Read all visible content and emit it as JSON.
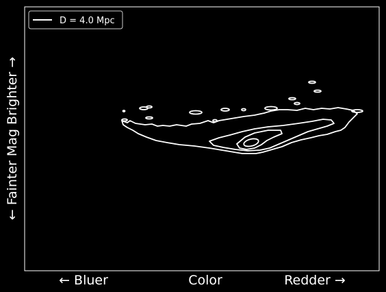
{
  "chart_data": {
    "type": "contour",
    "title": "",
    "xlabel": {
      "left": "← Bluer",
      "center": "Color",
      "right": "Redder →"
    },
    "ylabel": "← Fainter Mag Brighter →",
    "legend": {
      "placement": "top-left",
      "entries": [
        {
          "label": "D = 4.0 Mpc",
          "color": "#ffffff"
        }
      ]
    },
    "grid": false,
    "ticks": "none"
  },
  "colors": {
    "background": "#000000",
    "foreground": "#ffffff"
  }
}
